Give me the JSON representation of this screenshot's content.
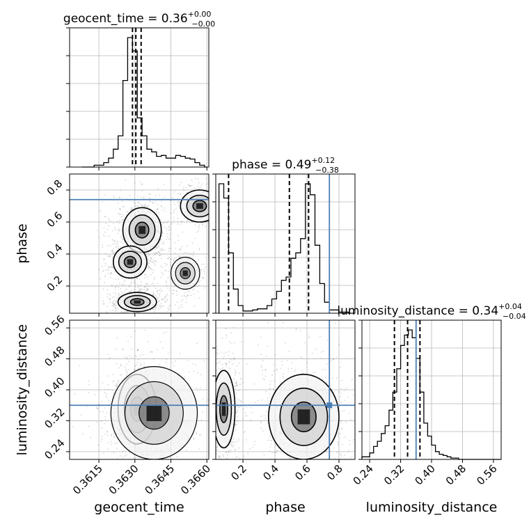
{
  "chart_data": {
    "type": "corner",
    "parameters": [
      "geocent_time",
      "phase",
      "luminosity_distance"
    ],
    "truths": {
      "geocent_time": null,
      "phase": 0.74,
      "luminosity_distance": 0.36
    },
    "colors": {
      "truth": "#4b7fb5",
      "contour": "#000000",
      "grid": "#b8b8b8"
    },
    "titles": [
      {
        "name": "geocent_time",
        "median": "0.36",
        "plus": "+0.00",
        "minus": "−0.00"
      },
      {
        "name": "phase",
        "median": "0.49",
        "plus": "+0.12",
        "minus": "−0.38"
      },
      {
        "name": "luminosity_distance",
        "median": "0.34",
        "plus": "+0.04",
        "minus": "−0.04"
      }
    ],
    "axis_labels": {
      "x": [
        "geocent_time",
        "phase",
        "luminosity_distance"
      ],
      "y": [
        "phase",
        "luminosity_distance"
      ]
    },
    "ranges": {
      "geocent_time": [
        0.36028,
        0.36608
      ],
      "phase": [
        0.03,
        0.9
      ],
      "luminosity_distance": [
        0.22,
        0.58
      ]
    },
    "ticks": {
      "geocent_time": {
        "values": [
          0.3615,
          0.363,
          0.3645,
          0.366
        ],
        "labels": [
          "0.3615",
          "0.3630",
          "0.3645",
          "0.3660"
        ]
      },
      "phase": {
        "values": [
          0.2,
          0.4,
          0.6,
          0.8
        ],
        "labels": [
          "0.2",
          "0.4",
          "0.6",
          "0.8"
        ]
      },
      "luminosity_distance": {
        "values": [
          0.24,
          0.32,
          0.4,
          0.48,
          0.56
        ],
        "labels": [
          "0.24",
          "0.32",
          "0.40",
          "0.48",
          "0.56"
        ]
      }
    },
    "histograms": {
      "geocent_time": {
        "quantiles": [
          0.3629,
          0.36304,
          0.36326
        ],
        "edges": [
          0.3608,
          0.3609,
          0.361,
          0.3611,
          0.3612,
          0.3613,
          0.3614,
          0.3615,
          0.3616,
          0.3617,
          0.3618,
          0.3619,
          0.362,
          0.3621,
          0.3622,
          0.3623,
          0.3624,
          0.3625,
          0.3626,
          0.3627,
          0.3628,
          0.3629,
          0.363,
          0.3631,
          0.3632,
          0.3633,
          0.3634,
          0.3635,
          0.3636,
          0.3637,
          0.3638,
          0.3639,
          0.364,
          0.3641,
          0.3642,
          0.3643,
          0.3644,
          0.3645,
          0.3646,
          0.3647,
          0.3648,
          0.3649,
          0.365,
          0.3651,
          0.3652,
          0.3653,
          0.3654,
          0.3655,
          0.3656,
          0.3657,
          0.3658,
          0.3659,
          0.366
        ],
        "counts": [
          0,
          0,
          0,
          0,
          0,
          2,
          2,
          2,
          2,
          5,
          5,
          10,
          10,
          20,
          20,
          35,
          35,
          97,
          97,
          145,
          145,
          130,
          130,
          55,
          55,
          35,
          35,
          20,
          20,
          17,
          17,
          12,
          12,
          13,
          13,
          10,
          10,
          10,
          10,
          13,
          13,
          12,
          12,
          10,
          10,
          9,
          9,
          5,
          5,
          2,
          2,
          0
        ]
      },
      "phase": {
        "quantiles": [
          0.11,
          0.49,
          0.61
        ],
        "edges": [
          0.05,
          0.08,
          0.11,
          0.14,
          0.17,
          0.2,
          0.23,
          0.26,
          0.29,
          0.32,
          0.35,
          0.38,
          0.41,
          0.44,
          0.47,
          0.5,
          0.53,
          0.56,
          0.59,
          0.62,
          0.65,
          0.68,
          0.71,
          0.74,
          0.77,
          0.8,
          0.83,
          0.86,
          0.89
        ],
        "counts": [
          118,
          105,
          55,
          22,
          7,
          2,
          2,
          3,
          4,
          4,
          7,
          13,
          20,
          30,
          33,
          50,
          55,
          68,
          118,
          108,
          62,
          27,
          10,
          3,
          3,
          1,
          1,
          0
        ]
      },
      "luminosity_distance": {
        "quantiles": [
          0.304,
          0.338,
          0.37
        ],
        "edges": [
          0.22,
          0.23,
          0.24,
          0.25,
          0.26,
          0.27,
          0.28,
          0.29,
          0.3,
          0.31,
          0.32,
          0.33,
          0.34,
          0.35,
          0.36,
          0.37,
          0.38,
          0.39,
          0.4,
          0.41,
          0.42,
          0.43,
          0.44,
          0.45,
          0.46,
          0.47,
          0.48,
          0.49,
          0.5,
          0.51,
          0.52,
          0.53,
          0.54,
          0.55,
          0.56,
          0.57,
          0.58
        ],
        "counts": [
          2,
          2,
          5,
          10,
          14,
          20,
          26,
          38,
          52,
          70,
          88,
          96,
          100,
          94,
          78,
          52,
          28,
          18,
          11,
          6,
          4,
          3,
          2,
          1,
          1,
          0,
          0,
          0,
          0,
          0,
          0,
          0,
          0,
          0,
          0,
          0
        ]
      }
    },
    "joint_blobs": {
      "phase_vs_geocent_time": [
        {
          "x": 0.3633,
          "y": 0.55,
          "sx": 0.0004,
          "sy": 0.07,
          "w": 1.0
        },
        {
          "x": 0.3628,
          "y": 0.35,
          "sx": 0.00035,
          "sy": 0.05,
          "w": 0.5
        },
        {
          "x": 0.3631,
          "y": 0.1,
          "sx": 0.0004,
          "sy": 0.03,
          "w": 0.8
        },
        {
          "x": 0.3651,
          "y": 0.28,
          "sx": 0.0003,
          "sy": 0.05,
          "w": 0.4
        },
        {
          "x": 0.3657,
          "y": 0.7,
          "sx": 0.0004,
          "sy": 0.05,
          "w": 0.5
        }
      ],
      "luminosity_distance_vs_geocent_time": [
        {
          "x": 0.3631,
          "y": 0.35,
          "sx": 0.0004,
          "sy": 0.045,
          "w": 1.0
        },
        {
          "x": 0.3638,
          "y": 0.34,
          "sx": 0.0009,
          "sy": 0.06,
          "w": 0.4
        }
      ],
      "luminosity_distance_vs_phase": [
        {
          "x": 0.08,
          "y": 0.35,
          "sx": 0.035,
          "sy": 0.05,
          "w": 0.8
        },
        {
          "x": 0.58,
          "y": 0.33,
          "sx": 0.11,
          "sy": 0.055,
          "w": 1.0
        }
      ]
    }
  }
}
